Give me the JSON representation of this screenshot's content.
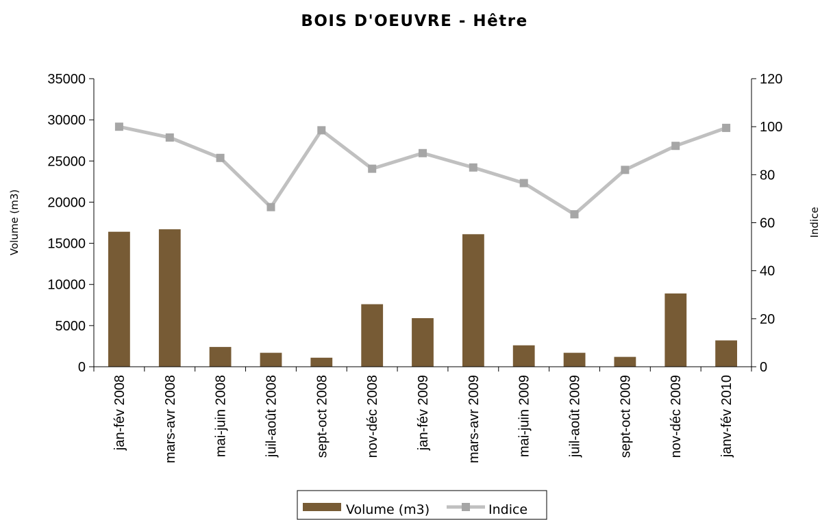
{
  "chart_data": {
    "type": "bar+line",
    "title": "BOIS D'OEUVRE - Hêtre",
    "categories": [
      "jan-fév 2008",
      "mars-avr 2008",
      "mai-juin 2008",
      "juil-août 2008",
      "sept-oct 2008",
      "nov-déc 2008",
      "jan-fév 2009",
      "mars-avr 2009",
      "mai-juin 2009",
      "juil-août 2009",
      "sept-oct 2009",
      "nov-déc 2009",
      "janv-fév 2010"
    ],
    "series": [
      {
        "name": "Volume (m3)",
        "type": "bar",
        "axis": "left",
        "color": "#775b35",
        "values": [
          16400,
          16700,
          2400,
          1700,
          1100,
          7600,
          5900,
          16100,
          2600,
          1700,
          1200,
          8900,
          3200
        ]
      },
      {
        "name": "Indice",
        "type": "line",
        "axis": "right",
        "color": "#c0c0c0",
        "marker_color": "#a6a6a6",
        "values": [
          100,
          95.5,
          87,
          66.5,
          98.5,
          82.5,
          89,
          83,
          76.5,
          63.5,
          82,
          92,
          99.5
        ]
      }
    ],
    "ylabel": "Volume (m3)",
    "ylim": [
      0,
      35000
    ],
    "yticks": [
      0,
      5000,
      10000,
      15000,
      20000,
      25000,
      30000,
      35000
    ],
    "y2label": "Indice",
    "y2lim": [
      0,
      120
    ],
    "y2ticks": [
      0,
      20,
      40,
      60,
      80,
      100,
      120
    ],
    "grid": false,
    "legend": "bottom"
  }
}
